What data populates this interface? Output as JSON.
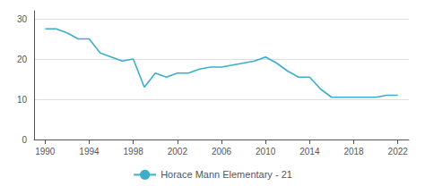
{
  "chart_data": {
    "type": "line",
    "x": [
      1990,
      1991,
      1992,
      1993,
      1994,
      1995,
      1996,
      1997,
      1998,
      1999,
      2000,
      2001,
      2002,
      2003,
      2004,
      2005,
      2006,
      2007,
      2008,
      2009,
      2010,
      2011,
      2012,
      2013,
      2014,
      2015,
      2016,
      2017,
      2018,
      2019,
      2020,
      2021,
      2022
    ],
    "series": [
      {
        "name": "Horace Mann Elementary - 21",
        "color": "#3daec9",
        "values": [
          27.5,
          27.5,
          26.5,
          25.0,
          25.0,
          21.5,
          20.5,
          19.5,
          20.0,
          13.0,
          16.5,
          15.5,
          16.5,
          16.5,
          17.5,
          18.0,
          18.0,
          18.5,
          19.0,
          19.5,
          20.5,
          19.0,
          17.0,
          15.5,
          15.5,
          12.5,
          10.5,
          10.5,
          10.5,
          10.5,
          10.5,
          11.0,
          11.0
        ]
      }
    ],
    "xlim": [
      1989,
      2023
    ],
    "xticks": [
      1990,
      1994,
      1998,
      2002,
      2006,
      2010,
      2014,
      2018,
      2022
    ],
    "ylim": [
      0,
      32
    ],
    "yticks": [
      0,
      10,
      20,
      30
    ],
    "grid": true,
    "legend": "bottom"
  }
}
